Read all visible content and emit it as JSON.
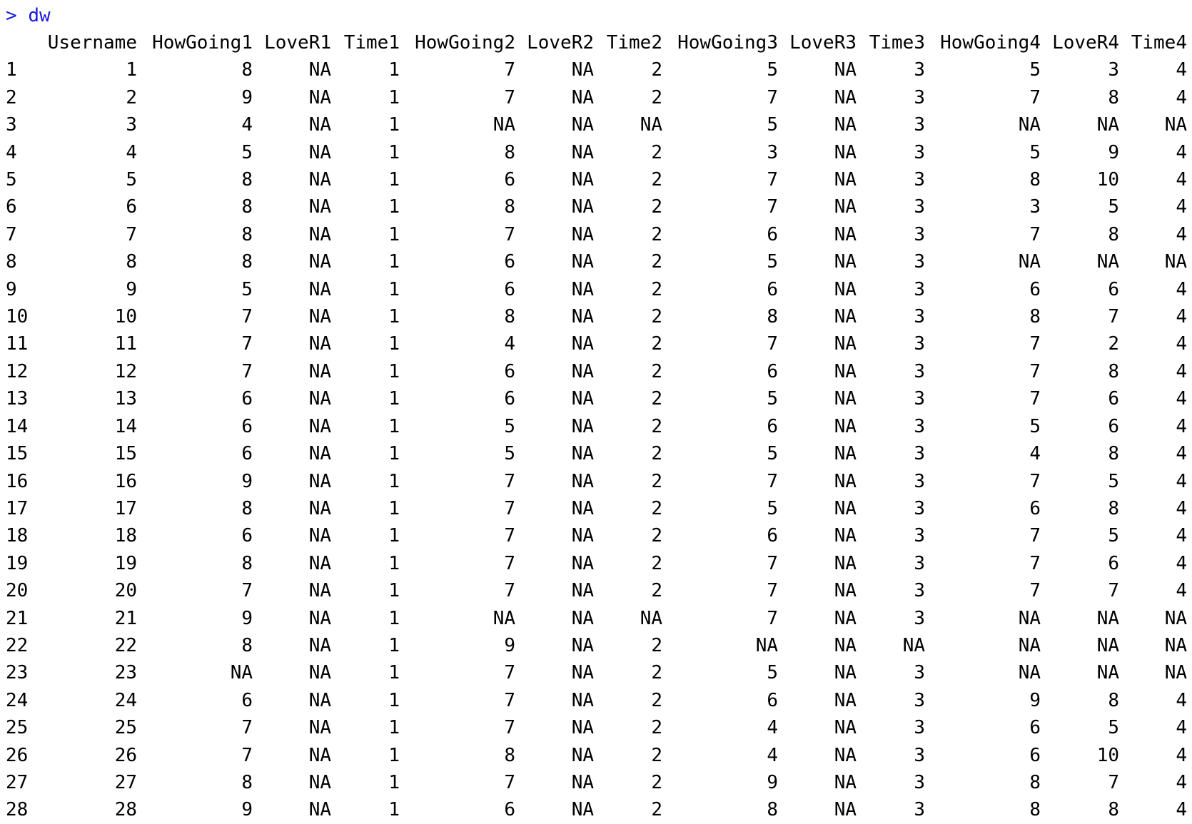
{
  "console": {
    "prompt": ">",
    "command": "dw",
    "prompt_color": "#1a1ad8"
  },
  "table": {
    "columns": [
      "Username",
      "HowGoing1",
      "LoveR1",
      "Time1",
      "HowGoing2",
      "LoveR2",
      "Time2",
      "HowGoing3",
      "LoveR3",
      "Time3",
      "HowGoing4",
      "LoveR4",
      "Time4"
    ],
    "rows": [
      {
        "rowname": "1",
        "cells": [
          "1",
          "8",
          "NA",
          "1",
          "7",
          "NA",
          "2",
          "5",
          "NA",
          "3",
          "5",
          "3",
          "4"
        ]
      },
      {
        "rowname": "2",
        "cells": [
          "2",
          "9",
          "NA",
          "1",
          "7",
          "NA",
          "2",
          "7",
          "NA",
          "3",
          "7",
          "8",
          "4"
        ]
      },
      {
        "rowname": "3",
        "cells": [
          "3",
          "4",
          "NA",
          "1",
          "NA",
          "NA",
          "NA",
          "5",
          "NA",
          "3",
          "NA",
          "NA",
          "NA"
        ]
      },
      {
        "rowname": "4",
        "cells": [
          "4",
          "5",
          "NA",
          "1",
          "8",
          "NA",
          "2",
          "3",
          "NA",
          "3",
          "5",
          "9",
          "4"
        ]
      },
      {
        "rowname": "5",
        "cells": [
          "5",
          "8",
          "NA",
          "1",
          "6",
          "NA",
          "2",
          "7",
          "NA",
          "3",
          "8",
          "10",
          "4"
        ]
      },
      {
        "rowname": "6",
        "cells": [
          "6",
          "8",
          "NA",
          "1",
          "8",
          "NA",
          "2",
          "7",
          "NA",
          "3",
          "3",
          "5",
          "4"
        ]
      },
      {
        "rowname": "7",
        "cells": [
          "7",
          "8",
          "NA",
          "1",
          "7",
          "NA",
          "2",
          "6",
          "NA",
          "3",
          "7",
          "8",
          "4"
        ]
      },
      {
        "rowname": "8",
        "cells": [
          "8",
          "8",
          "NA",
          "1",
          "6",
          "NA",
          "2",
          "5",
          "NA",
          "3",
          "NA",
          "NA",
          "NA"
        ]
      },
      {
        "rowname": "9",
        "cells": [
          "9",
          "5",
          "NA",
          "1",
          "6",
          "NA",
          "2",
          "6",
          "NA",
          "3",
          "6",
          "6",
          "4"
        ]
      },
      {
        "rowname": "10",
        "cells": [
          "10",
          "7",
          "NA",
          "1",
          "8",
          "NA",
          "2",
          "8",
          "NA",
          "3",
          "8",
          "7",
          "4"
        ]
      },
      {
        "rowname": "11",
        "cells": [
          "11",
          "7",
          "NA",
          "1",
          "4",
          "NA",
          "2",
          "7",
          "NA",
          "3",
          "7",
          "2",
          "4"
        ]
      },
      {
        "rowname": "12",
        "cells": [
          "12",
          "7",
          "NA",
          "1",
          "6",
          "NA",
          "2",
          "6",
          "NA",
          "3",
          "7",
          "8",
          "4"
        ]
      },
      {
        "rowname": "13",
        "cells": [
          "13",
          "6",
          "NA",
          "1",
          "6",
          "NA",
          "2",
          "5",
          "NA",
          "3",
          "7",
          "6",
          "4"
        ]
      },
      {
        "rowname": "14",
        "cells": [
          "14",
          "6",
          "NA",
          "1",
          "5",
          "NA",
          "2",
          "6",
          "NA",
          "3",
          "5",
          "6",
          "4"
        ]
      },
      {
        "rowname": "15",
        "cells": [
          "15",
          "6",
          "NA",
          "1",
          "5",
          "NA",
          "2",
          "5",
          "NA",
          "3",
          "4",
          "8",
          "4"
        ]
      },
      {
        "rowname": "16",
        "cells": [
          "16",
          "9",
          "NA",
          "1",
          "7",
          "NA",
          "2",
          "7",
          "NA",
          "3",
          "7",
          "5",
          "4"
        ]
      },
      {
        "rowname": "17",
        "cells": [
          "17",
          "8",
          "NA",
          "1",
          "7",
          "NA",
          "2",
          "5",
          "NA",
          "3",
          "6",
          "8",
          "4"
        ]
      },
      {
        "rowname": "18",
        "cells": [
          "18",
          "6",
          "NA",
          "1",
          "7",
          "NA",
          "2",
          "6",
          "NA",
          "3",
          "7",
          "5",
          "4"
        ]
      },
      {
        "rowname": "19",
        "cells": [
          "19",
          "8",
          "NA",
          "1",
          "7",
          "NA",
          "2",
          "7",
          "NA",
          "3",
          "7",
          "6",
          "4"
        ]
      },
      {
        "rowname": "20",
        "cells": [
          "20",
          "7",
          "NA",
          "1",
          "7",
          "NA",
          "2",
          "7",
          "NA",
          "3",
          "7",
          "7",
          "4"
        ]
      },
      {
        "rowname": "21",
        "cells": [
          "21",
          "9",
          "NA",
          "1",
          "NA",
          "NA",
          "NA",
          "7",
          "NA",
          "3",
          "NA",
          "NA",
          "NA"
        ]
      },
      {
        "rowname": "22",
        "cells": [
          "22",
          "8",
          "NA",
          "1",
          "9",
          "NA",
          "2",
          "NA",
          "NA",
          "NA",
          "NA",
          "NA",
          "NA"
        ]
      },
      {
        "rowname": "23",
        "cells": [
          "23",
          "NA",
          "NA",
          "1",
          "7",
          "NA",
          "2",
          "5",
          "NA",
          "3",
          "NA",
          "NA",
          "NA"
        ]
      },
      {
        "rowname": "24",
        "cells": [
          "24",
          "6",
          "NA",
          "1",
          "7",
          "NA",
          "2",
          "6",
          "NA",
          "3",
          "9",
          "8",
          "4"
        ]
      },
      {
        "rowname": "25",
        "cells": [
          "25",
          "7",
          "NA",
          "1",
          "7",
          "NA",
          "2",
          "4",
          "NA",
          "3",
          "6",
          "5",
          "4"
        ]
      },
      {
        "rowname": "26",
        "cells": [
          "26",
          "7",
          "NA",
          "1",
          "8",
          "NA",
          "2",
          "4",
          "NA",
          "3",
          "6",
          "10",
          "4"
        ]
      },
      {
        "rowname": "27",
        "cells": [
          "27",
          "8",
          "NA",
          "1",
          "7",
          "NA",
          "2",
          "9",
          "NA",
          "3",
          "8",
          "7",
          "4"
        ]
      },
      {
        "rowname": "28",
        "cells": [
          "28",
          "9",
          "NA",
          "1",
          "6",
          "NA",
          "2",
          "8",
          "NA",
          "3",
          "8",
          "8",
          "4"
        ]
      }
    ]
  }
}
